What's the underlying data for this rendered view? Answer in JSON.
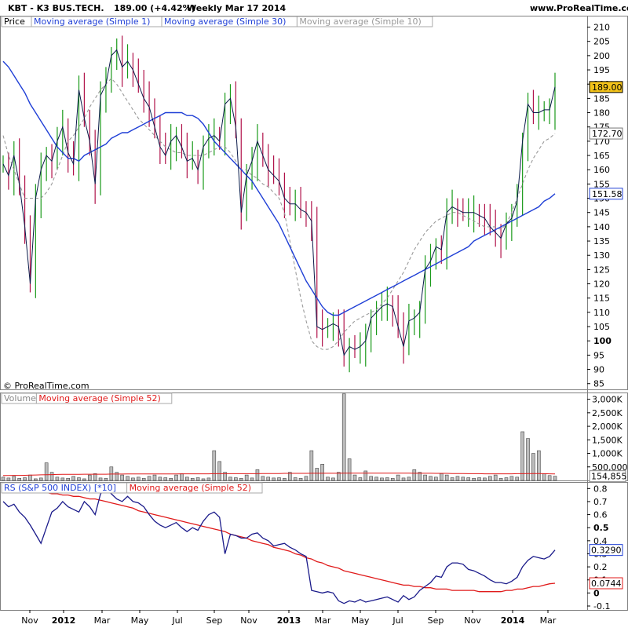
{
  "header": {
    "symbol": "KBT - K3 BUS.TECH.",
    "quote": "189.00 (+4.42%)",
    "period": "Weekly  Mar 17 2014",
    "site": "www.ProRealTime.com"
  },
  "watermark": "© ProRealTime.com",
  "colors": {
    "up": "#1a9a1a",
    "down": "#b0124a",
    "ma30": "#1f3fd6",
    "ma10": "#9a9a9a",
    "close_line": "#0a1a4a",
    "ma52_red": "#e01a1a",
    "rs_line": "#1a1a8a"
  },
  "chart_data": [
    {
      "type": "line",
      "panel": "price",
      "legend": [
        "Price",
        "Moving average (Simple 1)",
        "Moving average (Simple 30)",
        "Moving average (Simple 10)"
      ],
      "ylim": [
        83,
        214
      ],
      "y_ticks": [
        85,
        90,
        95,
        100,
        105,
        110,
        115,
        120,
        125,
        130,
        135,
        140,
        145,
        150,
        155,
        160,
        165,
        170,
        175,
        180,
        185,
        190,
        195,
        200,
        205,
        210
      ],
      "x_ticks": [
        "Nov",
        "2012",
        "Mar",
        "May",
        "Jul",
        "Sep",
        "Nov",
        "2013",
        "Mar",
        "May",
        "Jul",
        "Sep",
        "Nov",
        "2014",
        "Mar"
      ],
      "price_tags": {
        "close": "189.00",
        "ma10": "172.70",
        "ma30": "151.58"
      },
      "series": [
        {
          "name": "Moving average (Simple 1)",
          "values": [
            162,
            158,
            165,
            155,
            140,
            120,
            150,
            160,
            165,
            163,
            170,
            175,
            166,
            162,
            188,
            178,
            170,
            155,
            186,
            190,
            200,
            202,
            196,
            198,
            195,
            190,
            185,
            182,
            175,
            168,
            165,
            170,
            172,
            168,
            163,
            164,
            160,
            168,
            171,
            172,
            170,
            183,
            185,
            175,
            145,
            158,
            163,
            170,
            165,
            160,
            158,
            156,
            150,
            148,
            148,
            146,
            145,
            142,
            105,
            104,
            105,
            106,
            105,
            95,
            98,
            97,
            98,
            100,
            108,
            110,
            112,
            113,
            112,
            105,
            98,
            107,
            108,
            110,
            125,
            128,
            133,
            132,
            145,
            147,
            146,
            145,
            145,
            145,
            144,
            143,
            140,
            138,
            136,
            141,
            143,
            149,
            170,
            183,
            180,
            180,
            181,
            181,
            189
          ]
        },
        {
          "name": "Moving average (Simple 30)",
          "values": [
            198,
            196,
            193,
            190,
            187,
            183,
            180,
            177,
            174,
            171,
            168,
            166,
            164,
            164,
            163,
            165,
            166,
            167,
            168,
            169,
            171,
            172,
            173,
            173,
            174,
            175,
            176,
            177,
            178,
            179,
            180,
            180,
            180,
            180,
            179,
            179,
            178,
            176,
            173,
            170,
            168,
            166,
            164,
            162,
            160,
            158,
            156,
            153,
            150,
            147,
            144,
            141,
            137,
            133,
            129,
            125,
            121,
            118,
            115,
            112,
            110,
            109,
            109,
            110,
            111,
            112,
            113,
            114,
            115,
            116,
            117,
            118,
            119,
            120,
            121,
            122,
            123,
            124,
            125,
            126,
            127,
            128,
            129,
            130,
            131,
            132,
            133,
            135,
            136,
            137,
            138,
            139,
            140,
            141,
            142,
            143,
            144,
            145,
            146,
            147,
            149,
            150,
            151.58
          ]
        },
        {
          "name": "Moving average (Simple 10)",
          "values": [
            172,
            165,
            160,
            155,
            150,
            150,
            150,
            150,
            152,
            155,
            160,
            165,
            170,
            172,
            175,
            178,
            182,
            185,
            188,
            190,
            192,
            190,
            187,
            184,
            181,
            178,
            176,
            174,
            172,
            170,
            168,
            167,
            166,
            166,
            165,
            165,
            165,
            165,
            166,
            167,
            168,
            168,
            166,
            163,
            160,
            160,
            158,
            157,
            155,
            154,
            152,
            150,
            145,
            135,
            125,
            115,
            107,
            100,
            98,
            97,
            97,
            98,
            100,
            103,
            105,
            107,
            108,
            109,
            110,
            111,
            113,
            115,
            118,
            121,
            124,
            128,
            132,
            135,
            138,
            140,
            142,
            143,
            144,
            145,
            145,
            144,
            143,
            142,
            141,
            140,
            140,
            140,
            139,
            141,
            145,
            150,
            155,
            160,
            164,
            167,
            170,
            171,
            172.7
          ]
        }
      ]
    },
    {
      "type": "bar",
      "panel": "volume",
      "legend": [
        "Volume",
        "Moving average (Simple 52)"
      ],
      "ylim": [
        0,
        3250
      ],
      "y_ticks": [
        {
          "v": 3000,
          "label": "3,000K"
        },
        {
          "v": 2500,
          "label": "2,500K"
        },
        {
          "v": 2000,
          "label": "2,000K"
        },
        {
          "v": 1500,
          "label": "1,500K"
        },
        {
          "v": 1000,
          "label": "1,000K"
        },
        {
          "v": 500,
          "label": "500,000"
        }
      ],
      "last_tag": "154,855",
      "values": [
        120,
        90,
        150,
        80,
        100,
        200,
        60,
        90,
        650,
        300,
        120,
        90,
        80,
        150,
        100,
        60,
        200,
        250,
        90,
        80,
        500,
        300,
        200,
        150,
        90,
        120,
        80,
        150,
        200,
        120,
        100,
        80,
        200,
        250,
        120,
        80,
        100,
        60,
        90,
        1100,
        700,
        300,
        120,
        100,
        80,
        200,
        90,
        400,
        150,
        120,
        90,
        100,
        80,
        300,
        100,
        80,
        150,
        1100,
        450,
        600,
        120,
        90,
        300,
        3200,
        800,
        200,
        100,
        350,
        150,
        120,
        90,
        100,
        80,
        200,
        90,
        120,
        400,
        300,
        200,
        150,
        120,
        250,
        200,
        100,
        150,
        120,
        100,
        80,
        100,
        90,
        150,
        200,
        80,
        100,
        150,
        120,
        1800,
        1550,
        1000,
        1100,
        250,
        180,
        154.855
      ],
      "ma52": [
        180,
        180,
        185,
        185,
        190,
        195,
        200,
        205,
        210,
        215,
        220,
        225,
        225,
        225,
        225,
        230,
        230,
        230,
        230,
        230,
        235,
        235,
        235,
        240,
        240,
        240,
        240,
        240,
        240,
        240,
        240,
        240,
        240,
        245,
        245,
        245,
        245,
        245,
        245,
        250,
        250,
        250,
        250,
        250,
        250,
        250,
        250,
        250,
        255,
        255,
        255,
        255,
        260,
        260,
        260,
        260,
        260,
        265,
        265,
        265,
        265,
        265,
        265,
        270,
        270,
        270,
        270,
        270,
        270,
        270,
        270,
        270,
        270,
        270,
        270,
        270,
        265,
        265,
        265,
        265,
        260,
        260,
        260,
        255,
        255,
        255,
        250,
        250,
        250,
        245,
        245,
        245,
        245,
        245,
        245,
        250,
        250,
        255,
        255,
        255,
        250,
        245,
        240
      ]
    },
    {
      "type": "line",
      "panel": "rs",
      "legend": [
        "RS (S&P 500 INDEX) [*10]",
        "Moving average (Simple 52)"
      ],
      "ylim": [
        -0.13,
        0.85
      ],
      "y_ticks": [
        0.8,
        0.7,
        0.6,
        0.5,
        0.4,
        0.3,
        0.2,
        0.1,
        0,
        -0.1
      ],
      "tags": {
        "rs": "0.3290",
        "ma": "0.0744"
      },
      "series": [
        {
          "name": "RS (S&P 500 INDEX) [*10]",
          "values": [
            0.7,
            0.66,
            0.68,
            0.62,
            0.58,
            0.52,
            0.45,
            0.38,
            0.5,
            0.62,
            0.65,
            0.7,
            0.66,
            0.64,
            0.62,
            0.7,
            0.66,
            0.6,
            0.76,
            0.8,
            0.76,
            0.72,
            0.7,
            0.74,
            0.7,
            0.69,
            0.66,
            0.6,
            0.55,
            0.52,
            0.5,
            0.52,
            0.54,
            0.5,
            0.47,
            0.5,
            0.48,
            0.55,
            0.6,
            0.62,
            0.58,
            0.3,
            0.45,
            0.44,
            0.42,
            0.42,
            0.45,
            0.46,
            0.42,
            0.4,
            0.36,
            0.37,
            0.38,
            0.35,
            0.33,
            0.3,
            0.28,
            0.02,
            0.01,
            0.0,
            0.01,
            0.0,
            -0.06,
            -0.08,
            -0.06,
            -0.07,
            -0.05,
            -0.07,
            -0.06,
            -0.05,
            -0.04,
            -0.03,
            -0.05,
            -0.07,
            -0.02,
            -0.05,
            -0.03,
            0.02,
            0.05,
            0.08,
            0.13,
            0.12,
            0.2,
            0.23,
            0.23,
            0.22,
            0.18,
            0.17,
            0.15,
            0.13,
            0.1,
            0.08,
            0.08,
            0.07,
            0.09,
            0.12,
            0.2,
            0.25,
            0.28,
            0.27,
            0.26,
            0.28,
            0.329
          ]
        },
        {
          "name": "Moving average (Simple 52)",
          "values": [
            0.79,
            0.79,
            0.79,
            0.79,
            0.78,
            0.78,
            0.78,
            0.77,
            0.77,
            0.76,
            0.76,
            0.75,
            0.75,
            0.74,
            0.74,
            0.73,
            0.72,
            0.72,
            0.71,
            0.7,
            0.69,
            0.68,
            0.67,
            0.66,
            0.65,
            0.63,
            0.62,
            0.61,
            0.6,
            0.59,
            0.58,
            0.57,
            0.56,
            0.55,
            0.54,
            0.53,
            0.52,
            0.51,
            0.5,
            0.49,
            0.48,
            0.47,
            0.45,
            0.44,
            0.43,
            0.42,
            0.4,
            0.39,
            0.38,
            0.37,
            0.35,
            0.34,
            0.33,
            0.32,
            0.3,
            0.29,
            0.27,
            0.26,
            0.24,
            0.23,
            0.21,
            0.2,
            0.19,
            0.17,
            0.16,
            0.15,
            0.14,
            0.13,
            0.12,
            0.11,
            0.1,
            0.09,
            0.08,
            0.07,
            0.06,
            0.06,
            0.05,
            0.05,
            0.04,
            0.04,
            0.03,
            0.03,
            0.03,
            0.02,
            0.02,
            0.02,
            0.02,
            0.02,
            0.01,
            0.01,
            0.01,
            0.01,
            0.01,
            0.02,
            0.02,
            0.03,
            0.03,
            0.04,
            0.05,
            0.05,
            0.06,
            0.07,
            0.0744
          ]
        }
      ]
    }
  ]
}
